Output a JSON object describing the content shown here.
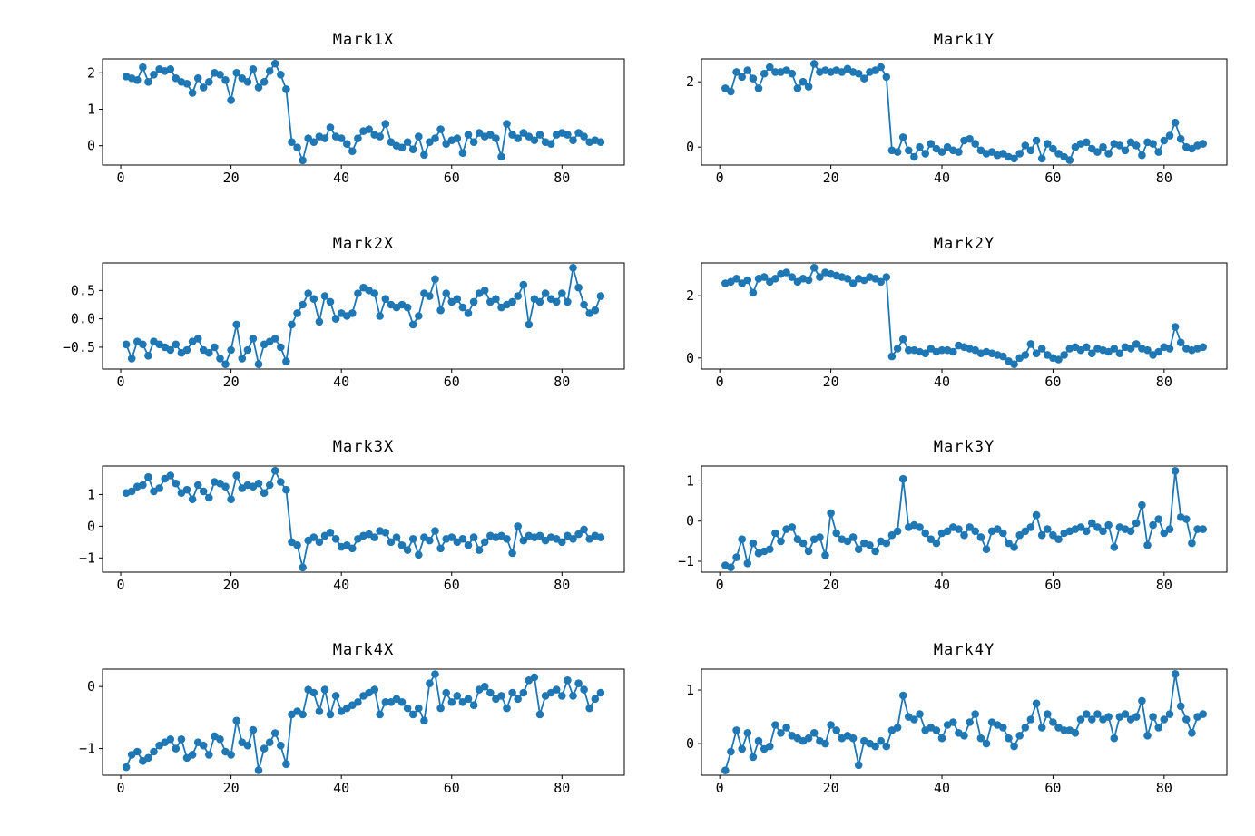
{
  "figure": {
    "background": "#ffffff",
    "grid": "off",
    "legend": "none",
    "rows": 4,
    "cols": 2
  },
  "chart_data": [
    {
      "type": "line",
      "title": "Mark1X",
      "xlabel": "",
      "ylabel": "",
      "line_color": "#1f77b4",
      "marker": "circle",
      "x_start": 1,
      "xlim": [
        -3.3,
        91.3
      ],
      "ylim": [
        -0.53,
        2.38
      ],
      "xticks": [
        0,
        20,
        40,
        60,
        80
      ],
      "xtick_labels": [
        "0",
        "20",
        "40",
        "60",
        "80"
      ],
      "yticks": [
        0,
        1,
        2
      ],
      "ytick_labels": [
        "0",
        "1",
        "2"
      ],
      "values": [
        1.9,
        1.85,
        1.8,
        2.15,
        1.75,
        1.95,
        2.1,
        2.05,
        2.1,
        1.85,
        1.75,
        1.7,
        1.45,
        1.85,
        1.6,
        1.75,
        2.0,
        1.95,
        1.8,
        1.25,
        2.0,
        1.85,
        1.75,
        2.1,
        1.6,
        1.75,
        2.05,
        2.25,
        1.95,
        1.55,
        0.1,
        -0.05,
        -0.4,
        0.2,
        0.1,
        0.25,
        0.2,
        0.5,
        0.25,
        0.2,
        0.05,
        -0.15,
        0.2,
        0.4,
        0.45,
        0.3,
        0.25,
        0.6,
        0.1,
        0.0,
        -0.05,
        0.1,
        -0.1,
        0.25,
        -0.25,
        0.1,
        0.2,
        0.45,
        0.05,
        0.15,
        0.2,
        -0.2,
        0.3,
        0.1,
        0.35,
        0.25,
        0.3,
        0.2,
        -0.3,
        0.6,
        0.3,
        0.2,
        0.35,
        0.25,
        0.15,
        0.3,
        0.1,
        0.05,
        0.3,
        0.35,
        0.3,
        0.15,
        0.35,
        0.25,
        0.1,
        0.15,
        0.1
      ]
    },
    {
      "type": "line",
      "title": "Mark1Y",
      "xlabel": "",
      "ylabel": "",
      "line_color": "#1f77b4",
      "marker": "circle",
      "x_start": 1,
      "xlim": [
        -3.3,
        91.3
      ],
      "ylim": [
        -0.55,
        2.7
      ],
      "xticks": [
        0,
        20,
        40,
        60,
        80
      ],
      "xtick_labels": [
        "0",
        "20",
        "40",
        "60",
        "80"
      ],
      "yticks": [
        0,
        2
      ],
      "ytick_labels": [
        "0",
        "2"
      ],
      "values": [
        1.8,
        1.7,
        2.3,
        2.15,
        2.35,
        2.1,
        1.8,
        2.25,
        2.45,
        2.3,
        2.3,
        2.35,
        2.25,
        1.8,
        2.0,
        1.85,
        2.55,
        2.3,
        2.35,
        2.3,
        2.35,
        2.3,
        2.4,
        2.3,
        2.25,
        2.1,
        2.3,
        2.35,
        2.45,
        2.15,
        -0.1,
        -0.15,
        0.3,
        -0.1,
        -0.3,
        0.0,
        -0.2,
        0.1,
        -0.05,
        -0.15,
        0.0,
        -0.1,
        -0.15,
        0.2,
        0.25,
        0.1,
        -0.1,
        -0.2,
        -0.15,
        -0.25,
        -0.2,
        -0.3,
        -0.35,
        -0.2,
        0.05,
        -0.1,
        0.2,
        -0.35,
        0.1,
        -0.05,
        -0.2,
        -0.3,
        -0.4,
        0.0,
        0.1,
        0.15,
        -0.05,
        -0.15,
        0.0,
        -0.2,
        0.1,
        0.05,
        -0.1,
        0.15,
        0.05,
        -0.25,
        0.15,
        0.1,
        -0.15,
        0.2,
        0.35,
        0.75,
        0.25,
        0.0,
        -0.05,
        0.05,
        0.1
      ]
    },
    {
      "type": "line",
      "title": "Mark2X",
      "xlabel": "",
      "ylabel": "",
      "line_color": "#1f77b4",
      "marker": "circle",
      "x_start": 1,
      "xlim": [
        -3.3,
        91.3
      ],
      "ylim": [
        -0.885,
        0.985
      ],
      "xticks": [
        0,
        20,
        40,
        60,
        80
      ],
      "xtick_labels": [
        "0",
        "20",
        "40",
        "60",
        "80"
      ],
      "yticks": [
        -0.5,
        0.0,
        0.5
      ],
      "ytick_labels": [
        "−0.5",
        "0.0",
        "0.5"
      ],
      "values": [
        -0.45,
        -0.7,
        -0.4,
        -0.45,
        -0.65,
        -0.4,
        -0.45,
        -0.5,
        -0.55,
        -0.45,
        -0.6,
        -0.55,
        -0.4,
        -0.35,
        -0.55,
        -0.6,
        -0.5,
        -0.7,
        -0.8,
        -0.55,
        -0.1,
        -0.7,
        -0.55,
        -0.35,
        -0.8,
        -0.45,
        -0.4,
        -0.35,
        -0.5,
        -0.75,
        -0.1,
        0.1,
        0.25,
        0.45,
        0.35,
        -0.05,
        0.4,
        0.3,
        0.0,
        0.1,
        0.05,
        0.1,
        0.45,
        0.55,
        0.5,
        0.45,
        0.05,
        0.35,
        0.25,
        0.2,
        0.25,
        0.2,
        -0.1,
        0.05,
        0.45,
        0.4,
        0.7,
        0.15,
        0.45,
        0.3,
        0.35,
        0.2,
        0.1,
        0.3,
        0.45,
        0.5,
        0.3,
        0.35,
        0.2,
        0.25,
        0.3,
        0.4,
        0.6,
        -0.1,
        0.35,
        0.3,
        0.45,
        0.35,
        0.3,
        0.45,
        0.3,
        0.9,
        0.55,
        0.25,
        0.1,
        0.15,
        0.4
      ]
    },
    {
      "type": "line",
      "title": "Mark2Y",
      "xlabel": "",
      "ylabel": "",
      "line_color": "#1f77b4",
      "marker": "circle",
      "x_start": 1,
      "xlim": [
        -3.3,
        91.3
      ],
      "ylim": [
        -0.355,
        3.055
      ],
      "xticks": [
        0,
        20,
        40,
        60,
        80
      ],
      "xtick_labels": [
        "0",
        "20",
        "40",
        "60",
        "80"
      ],
      "yticks": [
        0,
        2
      ],
      "ytick_labels": [
        "0",
        "2"
      ],
      "values": [
        2.4,
        2.45,
        2.55,
        2.4,
        2.5,
        2.1,
        2.55,
        2.6,
        2.45,
        2.55,
        2.7,
        2.75,
        2.6,
        2.45,
        2.55,
        2.5,
        2.9,
        2.6,
        2.75,
        2.7,
        2.65,
        2.6,
        2.55,
        2.4,
        2.55,
        2.5,
        2.6,
        2.55,
        2.45,
        2.6,
        0.05,
        0.3,
        0.6,
        0.25,
        0.25,
        0.2,
        0.15,
        0.3,
        0.2,
        0.25,
        0.25,
        0.2,
        0.4,
        0.35,
        0.3,
        0.25,
        0.15,
        0.2,
        0.15,
        0.1,
        0.05,
        -0.1,
        -0.2,
        0.0,
        0.1,
        0.45,
        0.15,
        0.3,
        0.1,
        0.0,
        -0.05,
        0.1,
        0.3,
        0.35,
        0.25,
        0.35,
        0.15,
        0.3,
        0.25,
        0.2,
        0.3,
        0.15,
        0.35,
        0.3,
        0.45,
        0.3,
        0.25,
        0.1,
        0.2,
        0.35,
        0.3,
        1.0,
        0.5,
        0.3,
        0.25,
        0.3,
        0.35
      ]
    },
    {
      "type": "line",
      "title": "Mark3X",
      "xlabel": "",
      "ylabel": "",
      "line_color": "#1f77b4",
      "marker": "circle",
      "x_start": 1,
      "xlim": [
        -3.3,
        91.3
      ],
      "ylim": [
        -1.45,
        1.9
      ],
      "xticks": [
        0,
        20,
        40,
        60,
        80
      ],
      "xtick_labels": [
        "0",
        "20",
        "40",
        "60",
        "80"
      ],
      "yticks": [
        -1,
        0,
        1
      ],
      "ytick_labels": [
        "−1",
        "0",
        "1"
      ],
      "values": [
        1.05,
        1.1,
        1.25,
        1.3,
        1.55,
        1.1,
        1.2,
        1.5,
        1.6,
        1.35,
        1.05,
        1.15,
        0.85,
        1.3,
        1.1,
        0.9,
        1.4,
        1.35,
        1.25,
        0.85,
        1.6,
        1.2,
        1.3,
        1.25,
        1.35,
        1.05,
        1.3,
        1.75,
        1.4,
        1.15,
        -0.5,
        -0.6,
        -1.3,
        -0.45,
        -0.35,
        -0.5,
        -0.3,
        -0.2,
        -0.4,
        -0.65,
        -0.6,
        -0.7,
        -0.4,
        -0.3,
        -0.25,
        -0.35,
        -0.15,
        -0.2,
        -0.5,
        -0.35,
        -0.6,
        -0.75,
        -0.4,
        -0.9,
        -0.35,
        -0.45,
        -0.15,
        -0.7,
        -0.4,
        -0.35,
        -0.5,
        -0.4,
        -0.6,
        -0.35,
        -0.75,
        -0.5,
        -0.3,
        -0.35,
        -0.3,
        -0.4,
        -0.85,
        0.0,
        -0.45,
        -0.3,
        -0.35,
        -0.3,
        -0.45,
        -0.35,
        -0.4,
        -0.5,
        -0.3,
        -0.4,
        -0.25,
        -0.1,
        -0.4,
        -0.3,
        -0.35
      ]
    },
    {
      "type": "line",
      "title": "Mark3Y",
      "xlabel": "",
      "ylabel": "",
      "line_color": "#1f77b4",
      "marker": "circle",
      "x_start": 1,
      "xlim": [
        -3.3,
        91.3
      ],
      "ylim": [
        -1.27,
        1.37
      ],
      "xticks": [
        0,
        20,
        40,
        60,
        80
      ],
      "xtick_labels": [
        "0",
        "20",
        "40",
        "60",
        "80"
      ],
      "yticks": [
        -1,
        0,
        1
      ],
      "ytick_labels": [
        "−1",
        "0",
        "1"
      ],
      "values": [
        -1.1,
        -1.15,
        -0.9,
        -0.45,
        -1.05,
        -0.55,
        -0.8,
        -0.75,
        -0.7,
        -0.3,
        -0.5,
        -0.2,
        -0.15,
        -0.45,
        -0.55,
        -0.75,
        -0.45,
        -0.4,
        -0.85,
        0.2,
        -0.3,
        -0.45,
        -0.5,
        -0.4,
        -0.7,
        -0.55,
        -0.6,
        -0.75,
        -0.5,
        -0.55,
        -0.35,
        -0.25,
        1.05,
        -0.15,
        -0.1,
        -0.15,
        -0.3,
        -0.45,
        -0.55,
        -0.3,
        -0.25,
        -0.15,
        -0.2,
        -0.35,
        -0.15,
        -0.25,
        -0.4,
        -0.7,
        -0.25,
        -0.2,
        -0.3,
        -0.55,
        -0.65,
        -0.35,
        -0.25,
        -0.15,
        0.15,
        -0.35,
        -0.2,
        -0.35,
        -0.45,
        -0.3,
        -0.25,
        -0.2,
        -0.15,
        -0.25,
        -0.05,
        -0.15,
        -0.25,
        -0.1,
        -0.65,
        -0.15,
        -0.2,
        -0.25,
        -0.05,
        0.4,
        -0.6,
        -0.1,
        0.05,
        -0.3,
        -0.2,
        1.25,
        0.1,
        0.05,
        -0.55,
        -0.2,
        -0.2
      ]
    },
    {
      "type": "line",
      "title": "Mark4X",
      "xlabel": "",
      "ylabel": "",
      "line_color": "#1f77b4",
      "marker": "circle",
      "x_start": 1,
      "xlim": [
        -3.3,
        91.3
      ],
      "ylim": [
        -1.43,
        0.28
      ],
      "xticks": [
        0,
        20,
        40,
        60,
        80
      ],
      "xtick_labels": [
        "0",
        "20",
        "40",
        "60",
        "80"
      ],
      "yticks": [
        -1,
        0
      ],
      "ytick_labels": [
        "−1",
        "0"
      ],
      "values": [
        -1.3,
        -1.1,
        -1.05,
        -1.2,
        -1.15,
        -1.05,
        -0.95,
        -0.9,
        -0.85,
        -1.0,
        -0.85,
        -1.15,
        -1.1,
        -0.9,
        -0.95,
        -1.1,
        -0.8,
        -0.85,
        -1.05,
        -1.1,
        -0.55,
        -0.9,
        -0.95,
        -0.7,
        -1.35,
        -1.0,
        -0.9,
        -0.75,
        -0.95,
        -1.25,
        -0.45,
        -0.4,
        -0.45,
        -0.05,
        -0.1,
        -0.4,
        -0.05,
        -0.45,
        -0.15,
        -0.4,
        -0.35,
        -0.3,
        -0.25,
        -0.15,
        -0.1,
        -0.05,
        -0.45,
        -0.25,
        -0.25,
        -0.2,
        -0.25,
        -0.35,
        -0.45,
        -0.35,
        -0.55,
        0.05,
        0.2,
        -0.35,
        -0.1,
        -0.25,
        -0.15,
        -0.25,
        -0.2,
        -0.3,
        -0.05,
        0.0,
        -0.1,
        -0.2,
        -0.15,
        -0.35,
        -0.1,
        -0.2,
        -0.1,
        0.1,
        0.15,
        -0.45,
        -0.15,
        -0.1,
        -0.05,
        -0.15,
        0.1,
        -0.15,
        0.05,
        -0.05,
        -0.35,
        -0.2,
        -0.1
      ]
    },
    {
      "type": "line",
      "title": "Mark4Y",
      "xlabel": "",
      "ylabel": "",
      "line_color": "#1f77b4",
      "marker": "circle",
      "x_start": 1,
      "xlim": [
        -3.3,
        91.3
      ],
      "ylim": [
        -0.59,
        1.39
      ],
      "xticks": [
        0,
        20,
        40,
        60,
        80
      ],
      "xtick_labels": [
        "0",
        "20",
        "40",
        "60",
        "80"
      ],
      "yticks": [
        0,
        1
      ],
      "ytick_labels": [
        "0",
        "1"
      ],
      "values": [
        -0.5,
        -0.15,
        0.25,
        -0.1,
        0.2,
        -0.25,
        0.05,
        -0.1,
        -0.05,
        0.35,
        0.2,
        0.3,
        0.15,
        0.1,
        0.05,
        0.1,
        0.2,
        0.05,
        0.0,
        0.35,
        0.25,
        0.1,
        0.15,
        0.1,
        -0.4,
        0.05,
        0.0,
        -0.05,
        0.05,
        -0.05,
        0.25,
        0.3,
        0.9,
        0.5,
        0.45,
        0.55,
        0.25,
        0.3,
        0.25,
        0.1,
        0.35,
        0.4,
        0.2,
        0.15,
        0.4,
        0.55,
        0.1,
        0.0,
        0.4,
        0.35,
        0.3,
        0.1,
        -0.05,
        0.15,
        0.3,
        0.45,
        0.75,
        0.3,
        0.55,
        0.4,
        0.3,
        0.25,
        0.25,
        0.2,
        0.45,
        0.55,
        0.45,
        0.55,
        0.45,
        0.5,
        0.1,
        0.5,
        0.55,
        0.45,
        0.5,
        0.8,
        0.15,
        0.5,
        0.3,
        0.45,
        0.55,
        1.3,
        0.7,
        0.45,
        0.2,
        0.5,
        0.55
      ]
    }
  ]
}
